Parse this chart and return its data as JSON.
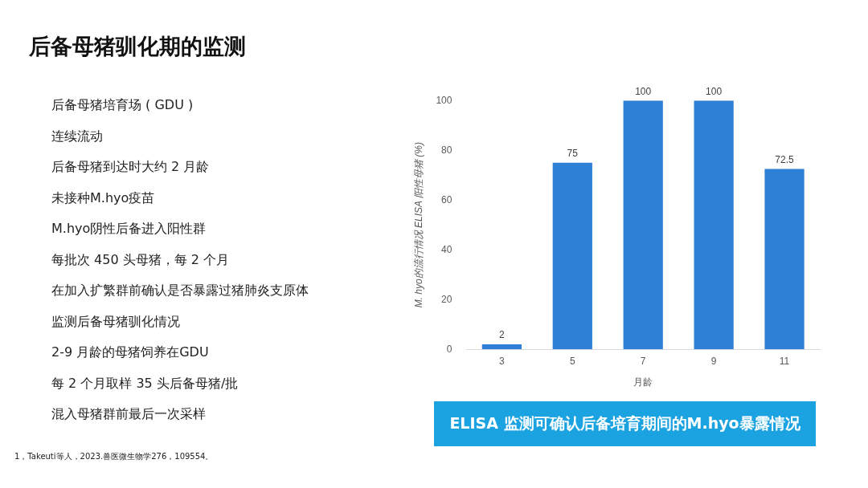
{
  "chart_data": {
    "type": "bar",
    "title": "后备母猪驯化期的监测",
    "xlabel": "月龄",
    "ylabel": "M. hyo的流行情况 ELISA 阳性母猪 (%)",
    "categories": [
      "3",
      "5",
      "7",
      "9",
      "11"
    ],
    "values": [
      2,
      75,
      100,
      100,
      72.5
    ],
    "color": "#2e7fd6",
    "ylim": [
      0,
      100
    ],
    "yticks": [
      0,
      20,
      40,
      60,
      80,
      100
    ],
    "grid": false,
    "legend": false,
    "data_labels": true,
    "annotations": [
      "后备母猪培育场 ( GDU )",
      "连续流动",
      "后备母猪到达时大约 2 月龄",
      "未接种M.hyo疫苗",
      "M.hyo阴性后备进入阳性群",
      "每批次 450 头母猪，每 2 个月",
      "在加入扩繁群前确认是否暴露过猪肺炎支原体",
      "监测后备母猪驯化情况",
      "2-9 月龄的母猪饲养在GDU",
      "每 2 个月取样 35 头后备母猪/批",
      "混入母猪群前最后一次采样",
      "ELISA 监测可确认后备培育期间的M.hyo暴露情况",
      "1，Takeuti等人，2023.兽医微生物学276，109554。"
    ]
  }
}
